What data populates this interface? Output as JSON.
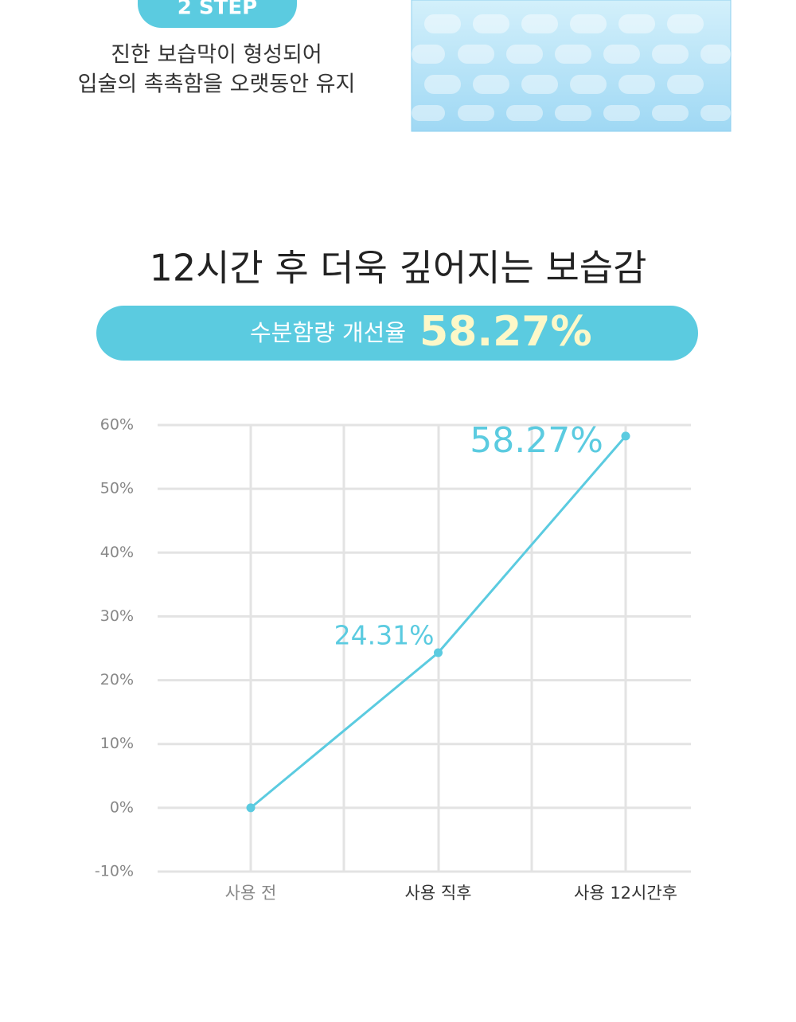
{
  "step": {
    "badge": "2 STEP",
    "lines": [
      "진한 보습막이 형성되어",
      "입술의 촉촉함을 오랫동안 유지"
    ]
  },
  "headline": "12시간 후 더욱 깊어지는 보습감",
  "banner": {
    "label": "수분함량 개선율",
    "value": "58.27%"
  },
  "chart_data": {
    "type": "line",
    "categories": [
      "사용 전",
      "사용 직후",
      "사용 12시간후"
    ],
    "series": [
      {
        "color": "#5bcbe0",
        "values": [
          0,
          24.31,
          58.27
        ],
        "value_labels": [
          null,
          "24.31%",
          "58.27%"
        ]
      }
    ],
    "ylim": [
      -10,
      60
    ],
    "yticks": [
      {
        "value": -10,
        "label": "-10%"
      },
      {
        "value": 0,
        "label": "0%"
      },
      {
        "value": 10,
        "label": "10%"
      },
      {
        "value": 20,
        "label": "20%"
      },
      {
        "value": 30,
        "label": "30%"
      },
      {
        "value": 40,
        "label": "40%"
      },
      {
        "value": 50,
        "label": "50%"
      },
      {
        "value": 60,
        "label": "60%"
      }
    ],
    "grid": true
  }
}
